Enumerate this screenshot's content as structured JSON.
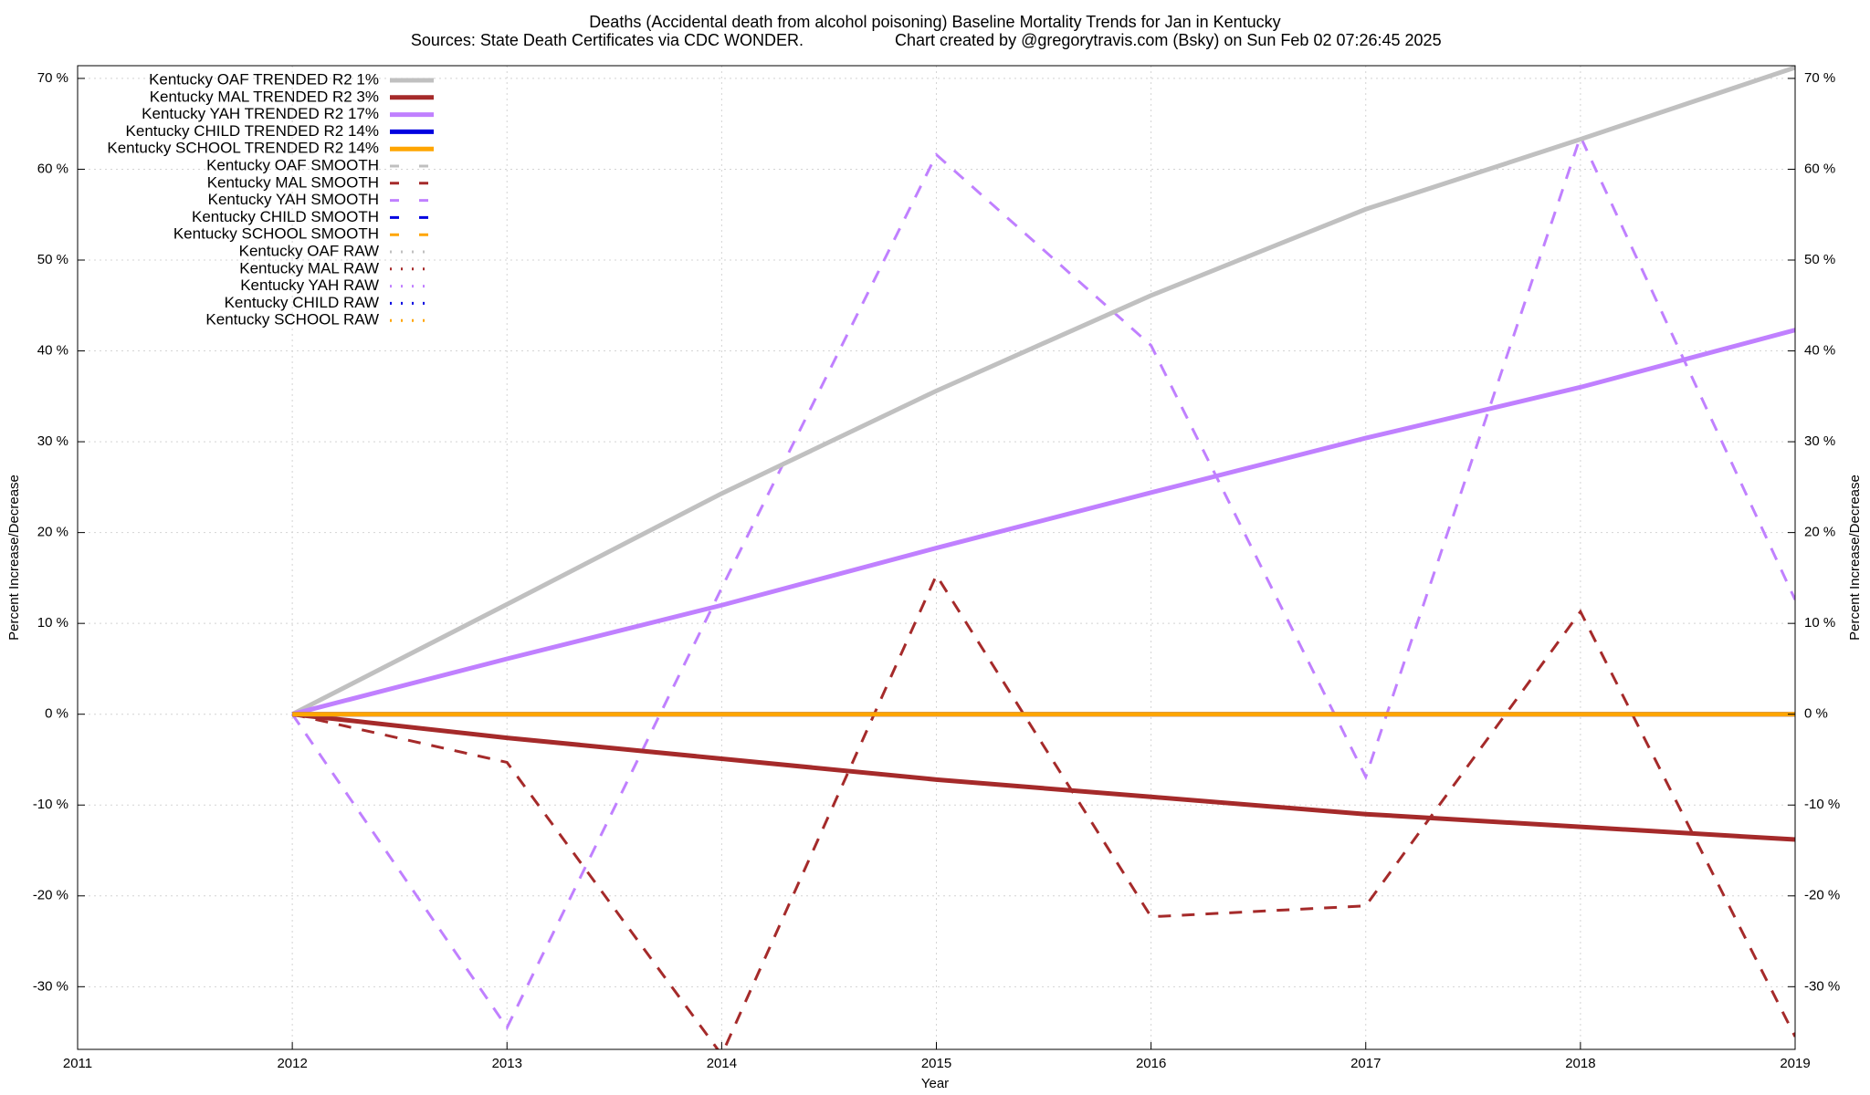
{
  "chart_data": {
    "type": "line",
    "title": "Deaths (Accidental death from alcohol poisoning)  Baseline Mortality Trends for Jan in Kentucky",
    "source": "Sources: State Death Certificates via CDC WONDER.",
    "credit": "Chart created by @gregorytravis.com (Bsky) on Sun Feb 02 07:26:45 2025",
    "xlabel": "Year",
    "ylabel": "Percent Increase/Decrease",
    "y2label": "Percent Increase/Decrease",
    "x": [
      2012,
      2013,
      2014,
      2015,
      2016,
      2017,
      2018,
      2019
    ],
    "xlim": [
      2011,
      2019
    ],
    "xticks": [
      2011,
      2012,
      2013,
      2014,
      2015,
      2016,
      2017,
      2018,
      2019
    ],
    "ylim": [
      -36.9,
      71.4
    ],
    "yticks": [
      {
        "value": -30,
        "label": "-30 %"
      },
      {
        "value": -20,
        "label": "-20 %"
      },
      {
        "value": -10,
        "label": "-10 %"
      },
      {
        "value": 0,
        "label": "0 %"
      },
      {
        "value": 10,
        "label": "10 %"
      },
      {
        "value": 20,
        "label": "20 %"
      },
      {
        "value": 30,
        "label": "30 %"
      },
      {
        "value": 40,
        "label": "40 %"
      },
      {
        "value": 50,
        "label": "50 %"
      },
      {
        "value": 60,
        "label": "60 %"
      },
      {
        "value": 70,
        "label": "70 %"
      }
    ],
    "y2lim": [
      -36.9,
      71.4
    ],
    "y2ticks": [
      {
        "value": -30,
        "label": "-30 %"
      },
      {
        "value": -20,
        "label": "-20 %"
      },
      {
        "value": -10,
        "label": "-10 %"
      },
      {
        "value": 0,
        "label": "0 %"
      },
      {
        "value": 10,
        "label": "10 %"
      },
      {
        "value": 20,
        "label": "20 %"
      },
      {
        "value": 30,
        "label": "30 %"
      },
      {
        "value": 40,
        "label": "40 %"
      },
      {
        "value": 50,
        "label": "50 %"
      },
      {
        "value": 60,
        "label": "60 %"
      },
      {
        "value": 70,
        "label": "70 %"
      }
    ],
    "grid": true,
    "legend": "top-left",
    "series": [
      {
        "name": "Kentucky OAF TRENDED R2  1%",
        "color": "#c0c0c0",
        "style": "solid",
        "values": [
          0,
          12.1,
          24.3,
          35.6,
          46.1,
          55.6,
          63.3,
          71.2
        ]
      },
      {
        "name": "Kentucky MAL TRENDED R2  3%",
        "color": "#a52a2a",
        "style": "solid",
        "values": [
          0,
          -2.6,
          -4.9,
          -7.2,
          -9.1,
          -11.0,
          -12.4,
          -13.8
        ]
      },
      {
        "name": "Kentucky YAH TRENDED R2  17%",
        "color": "#c080ff",
        "style": "solid",
        "values": [
          0,
          6.1,
          12.0,
          18.3,
          24.4,
          30.4,
          36.0,
          42.3
        ]
      },
      {
        "name": "Kentucky CHILD TRENDED R2  14%",
        "color": "#0000e0",
        "style": "solid",
        "values": [
          0,
          0,
          0,
          0,
          0,
          0,
          0,
          0
        ]
      },
      {
        "name": "Kentucky SCHOOL TRENDED R2  14%",
        "color": "#ffa500",
        "style": "solid",
        "values": [
          0,
          0,
          0,
          0,
          0,
          0,
          0,
          0
        ]
      },
      {
        "name": "Kentucky OAF SMOOTH",
        "color": "#c0c0c0",
        "style": "dashed",
        "values": [
          null,
          null,
          null,
          null,
          null,
          null,
          null,
          null
        ]
      },
      {
        "name": "Kentucky MAL SMOOTH",
        "color": "#a52a2a",
        "style": "dashed",
        "values": [
          0,
          -5.3,
          -37.5,
          15.3,
          -22.3,
          -21.1,
          11.3,
          -35.5
        ]
      },
      {
        "name": "Kentucky YAH SMOOTH",
        "color": "#c080ff",
        "style": "dashed",
        "values": [
          0,
          -34.5,
          13.9,
          61.6,
          40.6,
          -6.9,
          63.6,
          12.6
        ]
      },
      {
        "name": "Kentucky CHILD SMOOTH",
        "color": "#0000e0",
        "style": "dashed",
        "values": [
          0,
          0,
          0,
          0,
          0,
          0,
          0,
          0
        ]
      },
      {
        "name": "Kentucky SCHOOL SMOOTH",
        "color": "#ffa500",
        "style": "dashed",
        "values": [
          null,
          null,
          null,
          null,
          null,
          null,
          null,
          null
        ]
      },
      {
        "name": "Kentucky OAF RAW",
        "color": "#c0c0c0",
        "style": "dotted",
        "values": [
          null,
          null,
          null,
          null,
          null,
          null,
          null,
          null
        ]
      },
      {
        "name": "Kentucky MAL RAW",
        "color": "#a52a2a",
        "style": "dotted",
        "values": [
          null,
          null,
          null,
          null,
          null,
          null,
          null,
          null
        ]
      },
      {
        "name": "Kentucky YAH RAW",
        "color": "#c080ff",
        "style": "dotted",
        "values": [
          null,
          null,
          null,
          null,
          null,
          null,
          null,
          null
        ]
      },
      {
        "name": "Kentucky CHILD RAW",
        "color": "#0000e0",
        "style": "dotted",
        "values": [
          null,
          null,
          null,
          null,
          null,
          null,
          null,
          null
        ]
      },
      {
        "name": "Kentucky SCHOOL RAW",
        "color": "#ffa500",
        "style": "dotted",
        "values": [
          null,
          null,
          null,
          null,
          null,
          null,
          null,
          null
        ]
      }
    ]
  }
}
